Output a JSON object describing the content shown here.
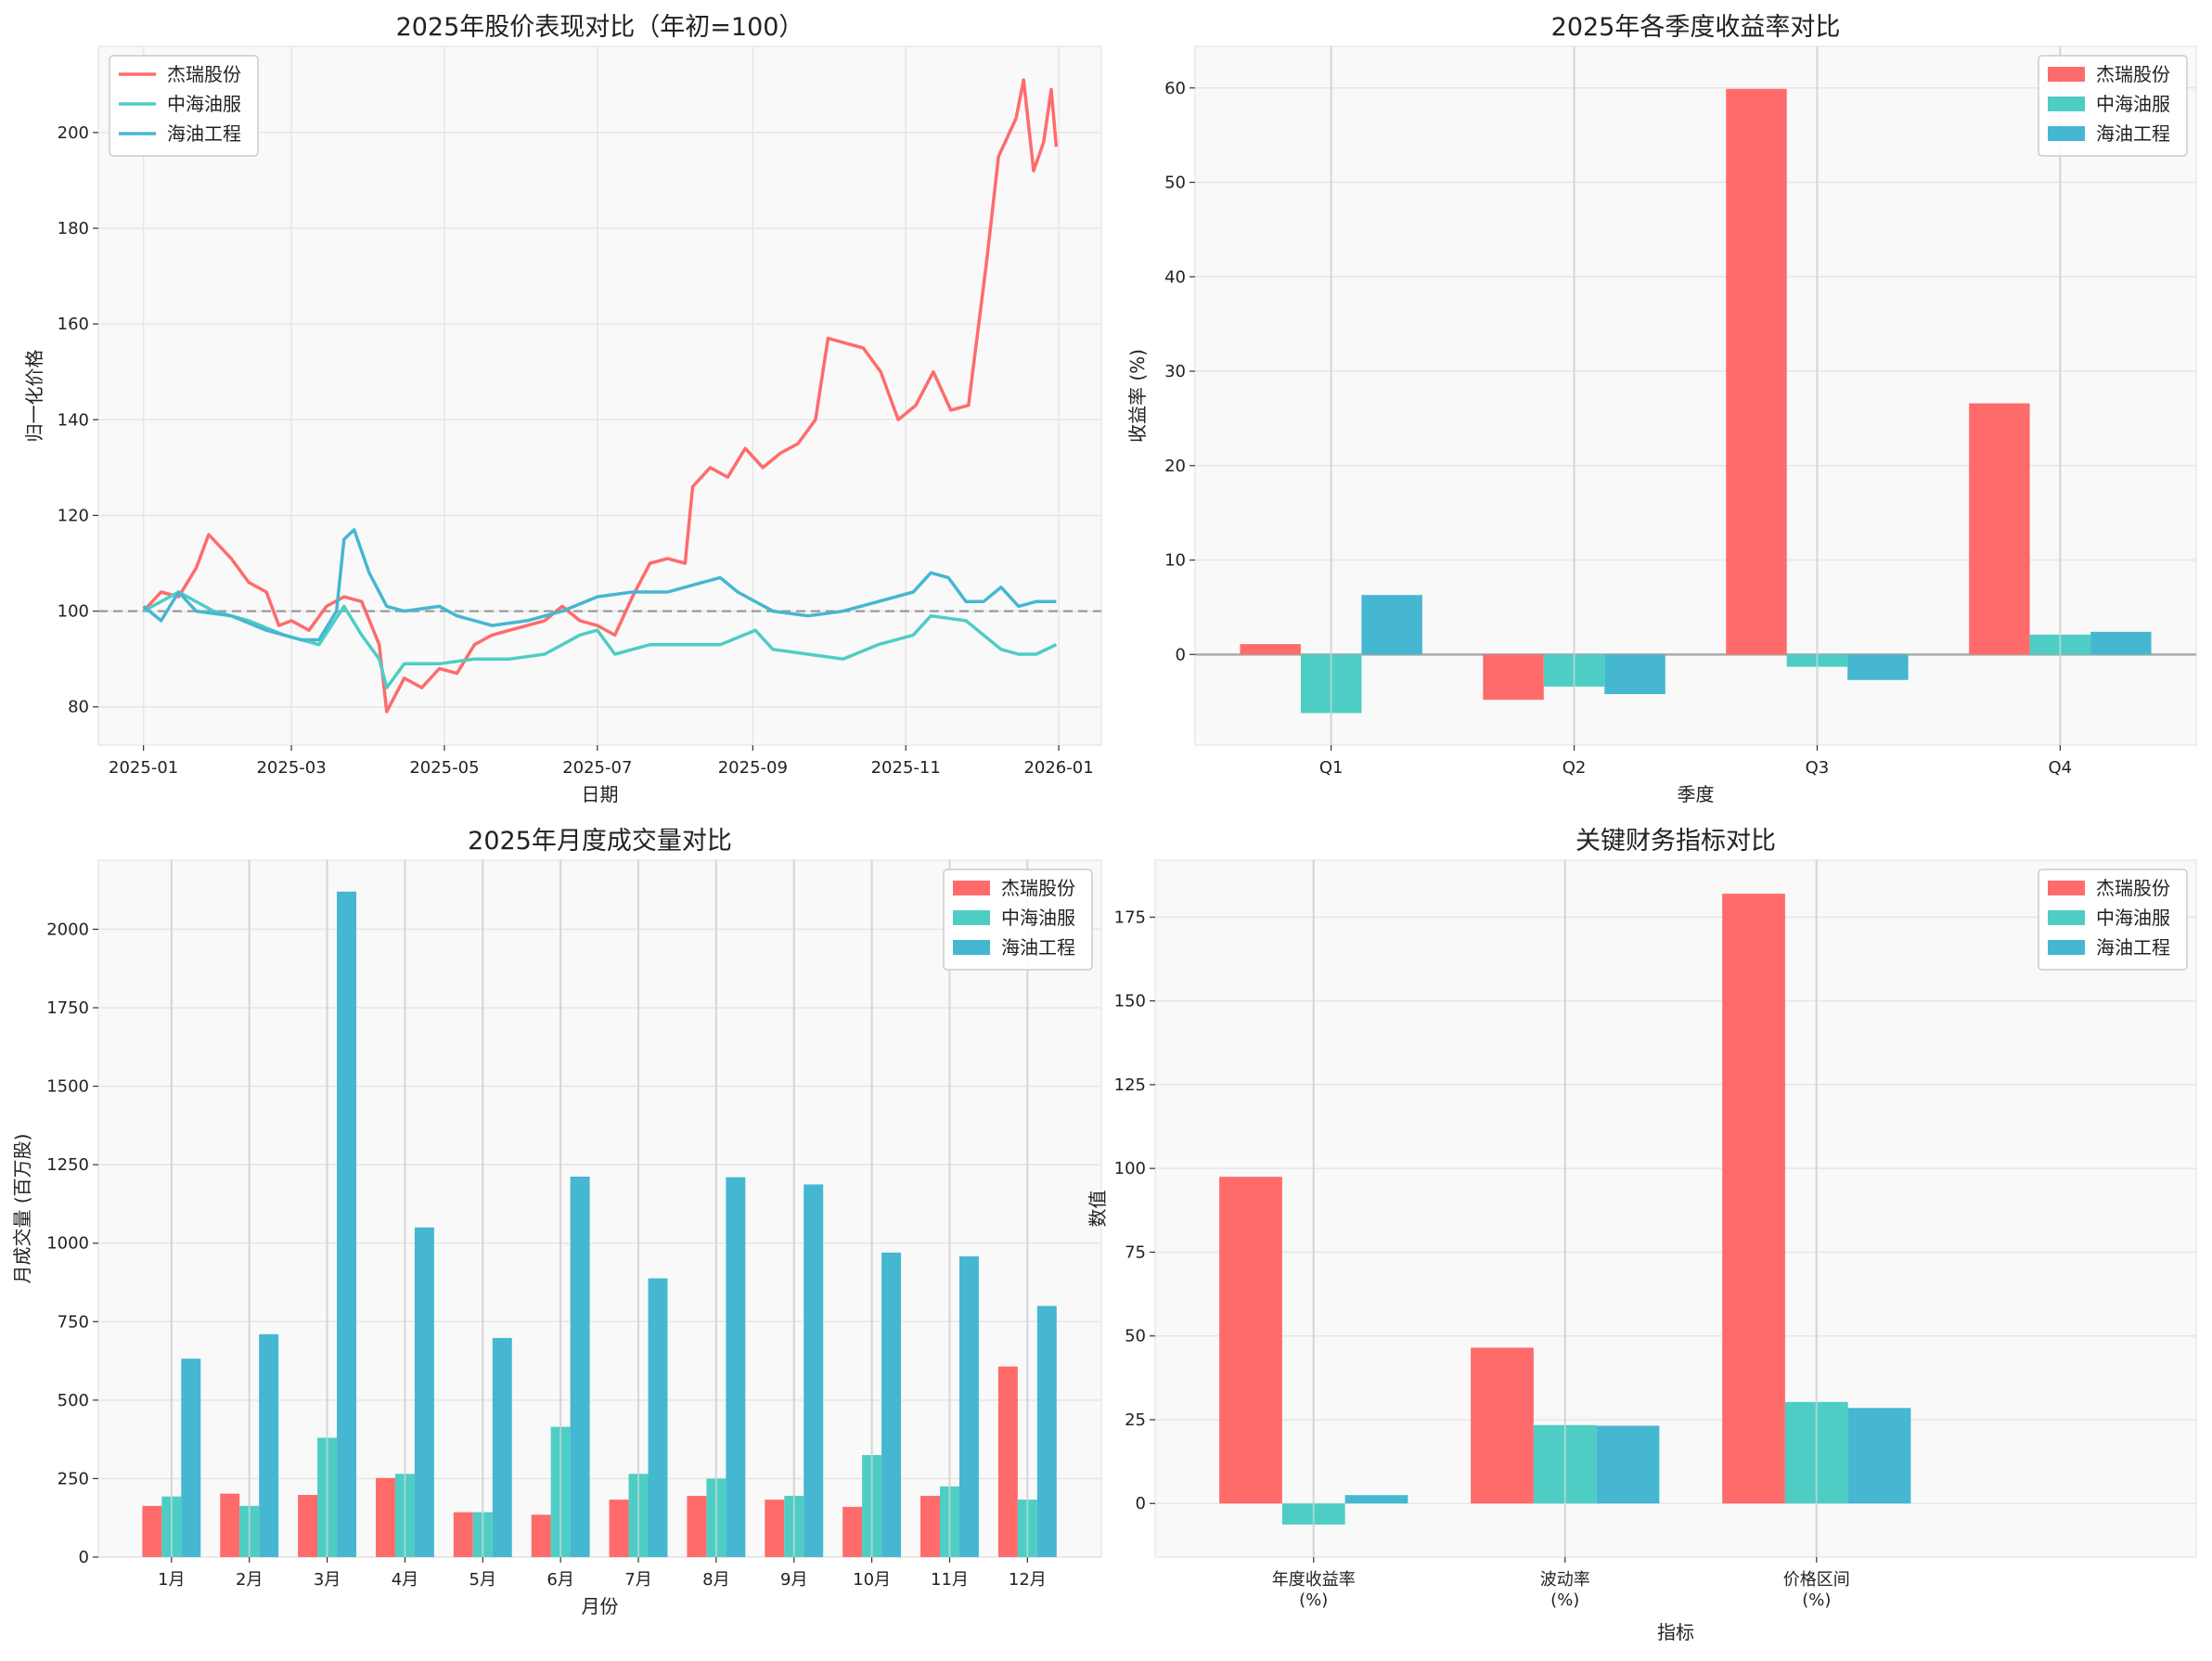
{
  "colors": {
    "杰瑞股份": "#FF6B6B",
    "中海油服": "#4ECDC4",
    "海油工程": "#45B7D1",
    "background": "#f9f9f9",
    "grid": "#e6e6e6"
  },
  "chart_data": [
    {
      "type": "line",
      "title": "2025年股价表现对比（年初=100）",
      "xlabel": "日期",
      "ylabel": "归一化价格",
      "xticks": [
        "2025-01",
        "2025-03",
        "2025-05",
        "2025-07",
        "2025-09",
        "2025-11",
        "2026-01"
      ],
      "yticks": [
        80,
        100,
        120,
        140,
        160,
        180,
        200
      ],
      "ylim": [
        72,
        218
      ],
      "xlim": [
        "2024-12-14",
        "2026-01-18"
      ],
      "reference_line": 100,
      "grid": true,
      "legend": "top-left",
      "series": [
        {
          "name": "杰瑞股份",
          "points": [
            [
              "2025-01-01",
              100
            ],
            [
              "2025-01-08",
              104
            ],
            [
              "2025-01-15",
              103
            ],
            [
              "2025-01-22",
              109
            ],
            [
              "2025-01-27",
              116
            ],
            [
              "2025-02-05",
              111
            ],
            [
              "2025-02-12",
              106
            ],
            [
              "2025-02-19",
              104
            ],
            [
              "2025-02-24",
              97
            ],
            [
              "2025-03-01",
              98
            ],
            [
              "2025-03-08",
              96
            ],
            [
              "2025-03-15",
              101
            ],
            [
              "2025-03-22",
              103
            ],
            [
              "2025-03-29",
              102
            ],
            [
              "2025-04-05",
              93
            ],
            [
              "2025-04-08",
              79
            ],
            [
              "2025-04-15",
              86
            ],
            [
              "2025-04-22",
              84
            ],
            [
              "2025-04-29",
              88
            ],
            [
              "2025-05-06",
              87
            ],
            [
              "2025-05-13",
              93
            ],
            [
              "2025-05-20",
              95
            ],
            [
              "2025-05-27",
              96
            ],
            [
              "2025-06-03",
              97
            ],
            [
              "2025-06-10",
              98
            ],
            [
              "2025-06-17",
              101
            ],
            [
              "2025-06-24",
              98
            ],
            [
              "2025-07-01",
              97
            ],
            [
              "2025-07-08",
              95
            ],
            [
              "2025-07-15",
              103
            ],
            [
              "2025-07-22",
              110
            ],
            [
              "2025-07-29",
              111
            ],
            [
              "2025-08-05",
              110
            ],
            [
              "2025-08-08",
              126
            ],
            [
              "2025-08-15",
              130
            ],
            [
              "2025-08-22",
              128
            ],
            [
              "2025-08-29",
              134
            ],
            [
              "2025-09-05",
              130
            ],
            [
              "2025-09-12",
              133
            ],
            [
              "2025-09-19",
              135
            ],
            [
              "2025-09-26",
              140
            ],
            [
              "2025-10-01",
              157
            ],
            [
              "2025-10-08",
              156
            ],
            [
              "2025-10-15",
              155
            ],
            [
              "2025-10-22",
              150
            ],
            [
              "2025-10-29",
              140
            ],
            [
              "2025-11-05",
              143
            ],
            [
              "2025-11-12",
              150
            ],
            [
              "2025-11-19",
              142
            ],
            [
              "2025-11-26",
              143
            ],
            [
              "2025-12-03",
              172
            ],
            [
              "2025-12-08",
              195
            ],
            [
              "2025-12-15",
              203
            ],
            [
              "2025-12-18",
              211
            ],
            [
              "2025-12-22",
              192
            ],
            [
              "2025-12-26",
              198
            ],
            [
              "2025-12-29",
              209
            ],
            [
              "2025-12-31",
              197
            ]
          ]
        },
        {
          "name": "中海油服",
          "points": [
            [
              "2025-01-01",
              100
            ],
            [
              "2025-01-15",
              104
            ],
            [
              "2025-01-29",
              100
            ],
            [
              "2025-02-12",
              98
            ],
            [
              "2025-02-26",
              95
            ],
            [
              "2025-03-12",
              93
            ],
            [
              "2025-03-22",
              101
            ],
            [
              "2025-03-29",
              95
            ],
            [
              "2025-04-05",
              90
            ],
            [
              "2025-04-08",
              84
            ],
            [
              "2025-04-15",
              89
            ],
            [
              "2025-04-29",
              89
            ],
            [
              "2025-05-13",
              90
            ],
            [
              "2025-05-27",
              90
            ],
            [
              "2025-06-10",
              91
            ],
            [
              "2025-06-24",
              95
            ],
            [
              "2025-07-01",
              96
            ],
            [
              "2025-07-08",
              91
            ],
            [
              "2025-07-22",
              93
            ],
            [
              "2025-08-05",
              93
            ],
            [
              "2025-08-19",
              93
            ],
            [
              "2025-09-02",
              96
            ],
            [
              "2025-09-09",
              92
            ],
            [
              "2025-09-23",
              91
            ],
            [
              "2025-10-07",
              90
            ],
            [
              "2025-10-21",
              93
            ],
            [
              "2025-11-04",
              95
            ],
            [
              "2025-11-11",
              99
            ],
            [
              "2025-11-25",
              98
            ],
            [
              "2025-12-09",
              92
            ],
            [
              "2025-12-16",
              91
            ],
            [
              "2025-12-23",
              91
            ],
            [
              "2025-12-31",
              93
            ]
          ]
        },
        {
          "name": "海油工程",
          "points": [
            [
              "2025-01-01",
              101
            ],
            [
              "2025-01-08",
              98
            ],
            [
              "2025-01-15",
              104
            ],
            [
              "2025-01-22",
              100
            ],
            [
              "2025-02-05",
              99
            ],
            [
              "2025-02-19",
              96
            ],
            [
              "2025-03-05",
              94
            ],
            [
              "2025-03-12",
              94
            ],
            [
              "2025-03-19",
              100
            ],
            [
              "2025-03-22",
              115
            ],
            [
              "2025-03-26",
              117
            ],
            [
              "2025-04-01",
              108
            ],
            [
              "2025-04-08",
              101
            ],
            [
              "2025-04-15",
              100
            ],
            [
              "2025-04-29",
              101
            ],
            [
              "2025-05-06",
              99
            ],
            [
              "2025-05-20",
              97
            ],
            [
              "2025-06-03",
              98
            ],
            [
              "2025-06-17",
              100
            ],
            [
              "2025-07-01",
              103
            ],
            [
              "2025-07-15",
              104
            ],
            [
              "2025-07-29",
              104
            ],
            [
              "2025-08-12",
              106
            ],
            [
              "2025-08-19",
              107
            ],
            [
              "2025-08-26",
              104
            ],
            [
              "2025-09-09",
              100
            ],
            [
              "2025-09-23",
              99
            ],
            [
              "2025-10-07",
              100
            ],
            [
              "2025-10-21",
              102
            ],
            [
              "2025-11-04",
              104
            ],
            [
              "2025-11-11",
              108
            ],
            [
              "2025-11-18",
              107
            ],
            [
              "2025-11-25",
              102
            ],
            [
              "2025-12-02",
              102
            ],
            [
              "2025-12-09",
              105
            ],
            [
              "2025-12-16",
              101
            ],
            [
              "2025-12-23",
              102
            ],
            [
              "2025-12-31",
              102
            ]
          ]
        }
      ]
    },
    {
      "type": "bar",
      "title": "2025年各季度收益率对比",
      "xlabel": "季度",
      "ylabel": "收益率 (%)",
      "categories": [
        "Q1",
        "Q2",
        "Q3",
        "Q4"
      ],
      "yticks": [
        0,
        10,
        20,
        30,
        40,
        50,
        60
      ],
      "ylim": [
        -9.6,
        64.4
      ],
      "zero_line": true,
      "grid": true,
      "legend": "top-right",
      "series": [
        {
          "name": "杰瑞股份",
          "values": [
            1.1,
            -4.8,
            59.9,
            26.6
          ]
        },
        {
          "name": "中海油服",
          "values": [
            -6.2,
            -3.4,
            -1.3,
            2.1
          ]
        },
        {
          "name": "海油工程",
          "values": [
            6.3,
            -4.2,
            -2.7,
            2.4
          ]
        }
      ]
    },
    {
      "type": "bar",
      "title": "2025年月度成交量对比",
      "xlabel": "月份",
      "ylabel": "月成交量 (百万股)",
      "categories": [
        "1月",
        "2月",
        "3月",
        "4月",
        "5月",
        "6月",
        "7月",
        "8月",
        "9月",
        "10月",
        "11月",
        "12月"
      ],
      "yticks": [
        0,
        250,
        500,
        750,
        1000,
        1250,
        1500,
        1750,
        2000
      ],
      "ylim": [
        0,
        2220
      ],
      "grid": true,
      "legend": "top-right",
      "series": [
        {
          "name": "杰瑞股份",
          "values": [
            163,
            202,
            198,
            252,
            143,
            135,
            183,
            195,
            183,
            160,
            195,
            607
          ]
        },
        {
          "name": "中海油服",
          "values": [
            193,
            163,
            380,
            265,
            143,
            415,
            265,
            250,
            195,
            325,
            225,
            183
          ]
        },
        {
          "name": "海油工程",
          "values": [
            632,
            710,
            2120,
            1050,
            698,
            1212,
            888,
            1210,
            1187,
            970,
            958,
            800
          ]
        }
      ]
    },
    {
      "type": "bar",
      "title": "关键财务指标对比",
      "xlabel": "指标",
      "ylabel": "数值",
      "categories": [
        "年度收益率\n(%)",
        "波动率\n(%)",
        "价格区间\n(%)"
      ],
      "yticks": [
        0,
        25,
        50,
        75,
        100,
        125,
        150,
        175
      ],
      "ylim": [
        -16,
        192
      ],
      "grid": true,
      "legend": "top-right",
      "series": [
        {
          "name": "杰瑞股份",
          "values": [
            97.5,
            46.5,
            182.0
          ]
        },
        {
          "name": "中海油服",
          "values": [
            -6.3,
            23.4,
            30.3
          ]
        },
        {
          "name": "海油工程",
          "values": [
            2.5,
            23.2,
            28.5
          ]
        }
      ]
    }
  ]
}
